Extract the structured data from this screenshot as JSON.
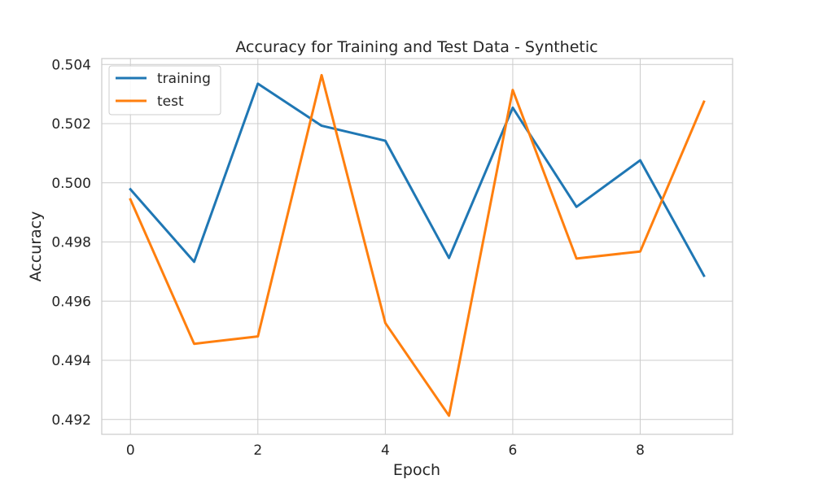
{
  "chart_data": {
    "type": "line",
    "title": "Accuracy for Training and Test Data - Synthetic",
    "xlabel": "Epoch",
    "ylabel": "Accuracy",
    "x": [
      0,
      1,
      2,
      3,
      4,
      5,
      6,
      7,
      8,
      9
    ],
    "xticks": [
      0,
      2,
      4,
      6,
      8
    ],
    "xtick_labels": [
      "0",
      "2",
      "4",
      "6",
      "8"
    ],
    "xlim": [
      -0.45,
      9.45
    ],
    "yticks": [
      0.492,
      0.494,
      0.496,
      0.498,
      0.5,
      0.502,
      0.504
    ],
    "ytick_labels": [
      "0.492",
      "0.494",
      "0.496",
      "0.498",
      "0.500",
      "0.502",
      "0.504"
    ],
    "ylim": [
      0.4915,
      0.5042
    ],
    "grid": true,
    "legend_position": "upper-left",
    "series": [
      {
        "name": "training",
        "color": "#1f77b4",
        "values": [
          0.49978,
          0.49733,
          0.50335,
          0.50193,
          0.50142,
          0.49746,
          0.50254,
          0.49919,
          0.50076,
          0.49686
        ]
      },
      {
        "name": "test",
        "color": "#ff7f0e",
        "values": [
          0.49944,
          0.49456,
          0.49481,
          0.50364,
          0.49526,
          0.49213,
          0.50314,
          0.49744,
          0.49768,
          0.50274
        ]
      }
    ]
  }
}
